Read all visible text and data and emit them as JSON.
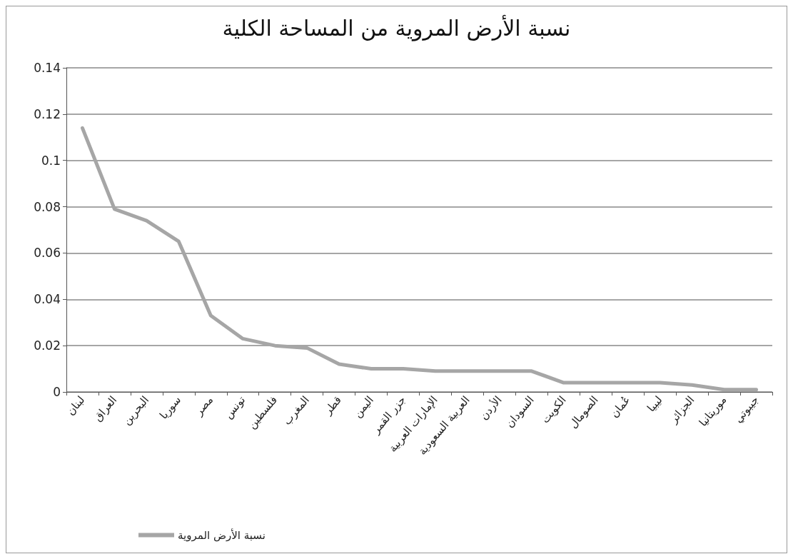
{
  "chart_data": {
    "type": "line",
    "title": "نسبة الأرض المروية من المساحة الكلية",
    "categories": [
      "لبنان",
      "العراق",
      "البحرين",
      "سوريا",
      "مصر",
      "تونس",
      "فلسطين",
      "المغرب",
      "قطر",
      "اليمن",
      "جزر القمر",
      "الإمارات العربية",
      "العربية السعودية",
      "الأردن",
      "السودان",
      "الكويت",
      "الصومال",
      "عُمان",
      "ليبيا",
      "الجزائر",
      "موريتانيا",
      "جيبوتي"
    ],
    "series": [
      {
        "name": "نسبة الأرض المروية",
        "color": "#a6a6a6",
        "values": [
          0.114,
          0.079,
          0.074,
          0.065,
          0.033,
          0.023,
          0.02,
          0.019,
          0.012,
          0.01,
          0.01,
          0.009,
          0.009,
          0.009,
          0.009,
          0.004,
          0.004,
          0.004,
          0.004,
          0.003,
          0.001,
          0.001
        ]
      }
    ],
    "ylim": [
      0,
      0.14
    ],
    "yticks": [
      0,
      0.02,
      0.04,
      0.06,
      0.08,
      0.1,
      0.12,
      0.14
    ],
    "grid": "y",
    "legend": "bottom left",
    "marker": "none",
    "line_style": "solid"
  }
}
